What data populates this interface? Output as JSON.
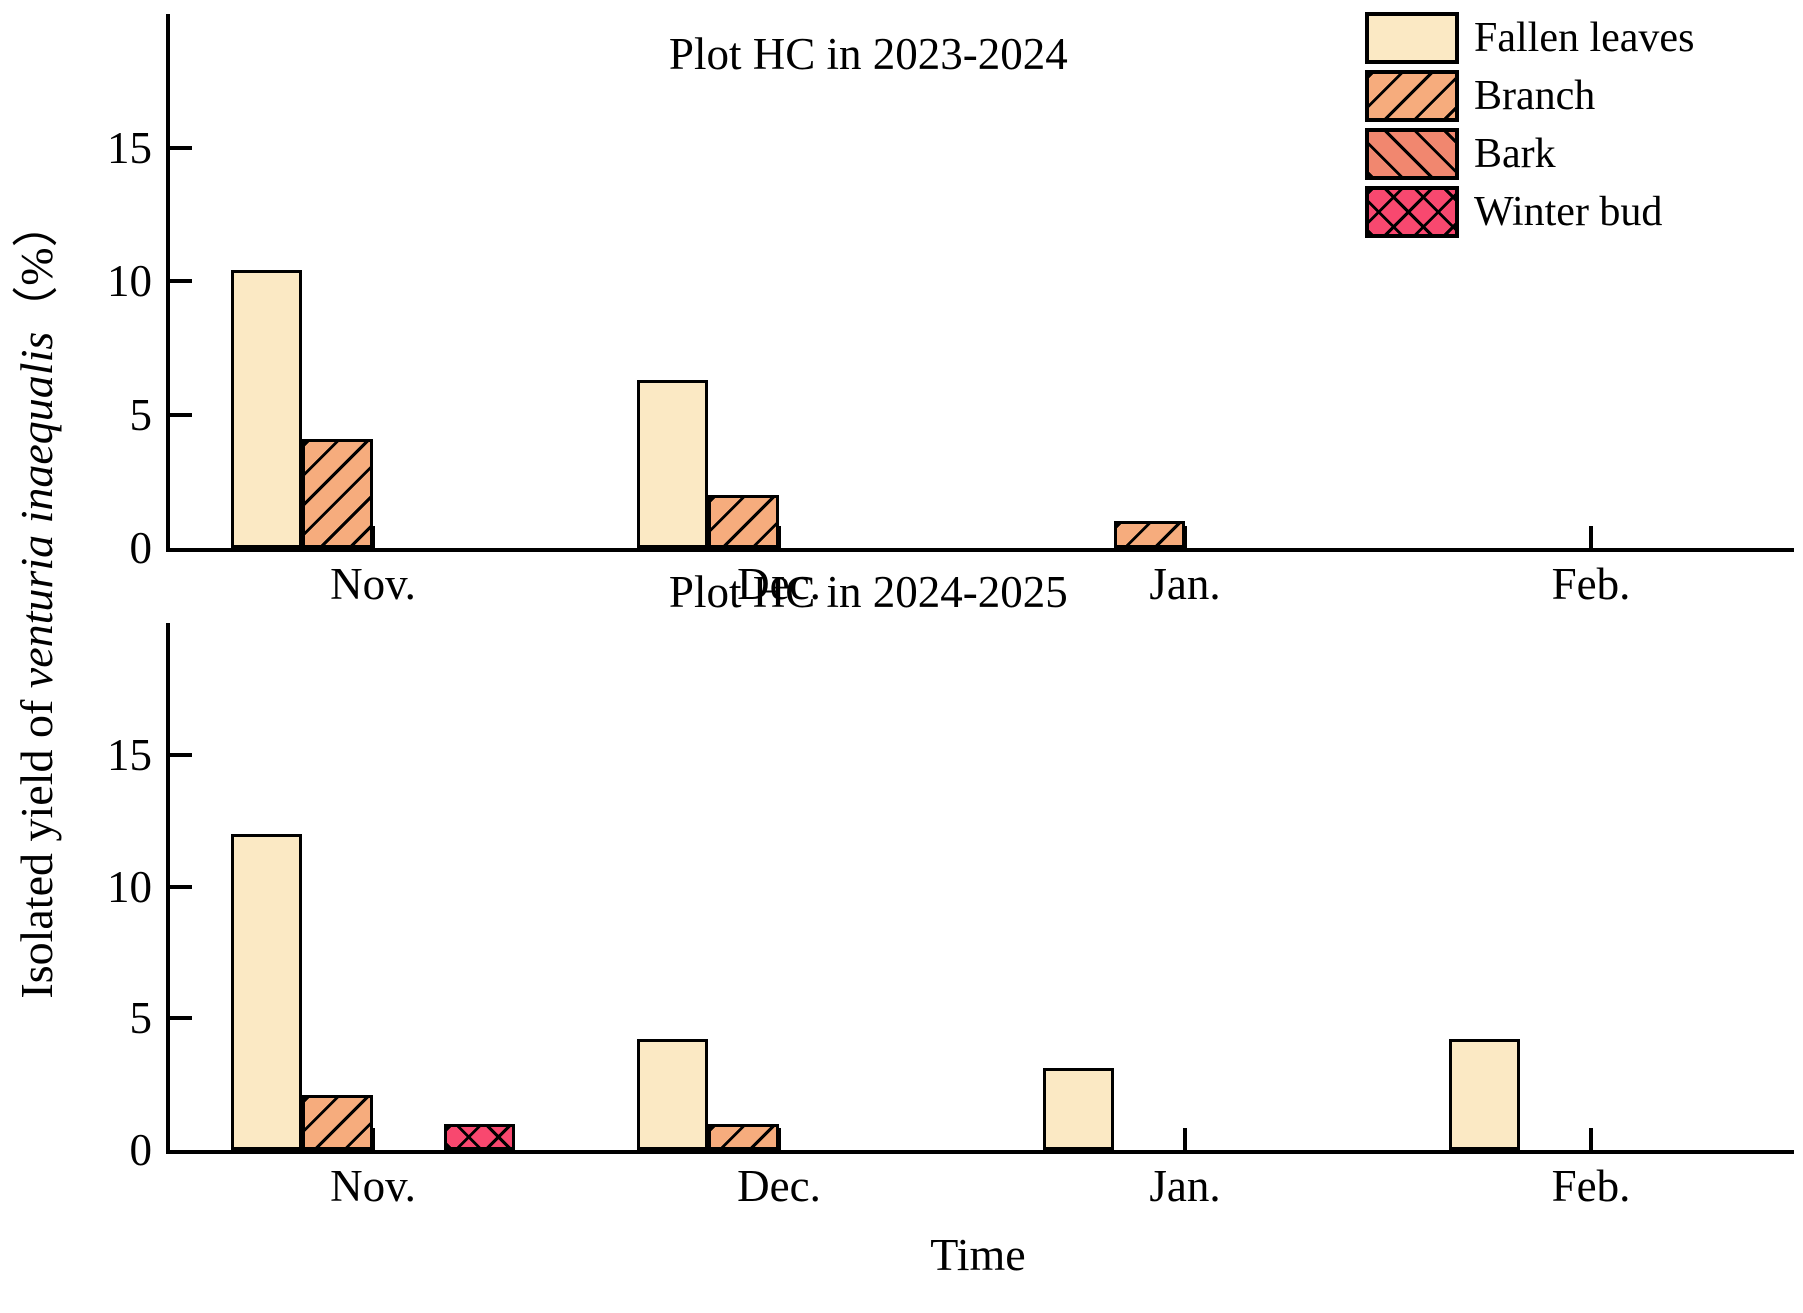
{
  "figure": {
    "y_axis_label": {
      "prefix": "Isolated yield of ",
      "italic": "venturia inaequalis",
      "suffix": "（%）"
    },
    "x_axis_label": "Time",
    "background": "#ffffff",
    "axis_color": "#000000"
  },
  "legend": {
    "position": "top-right",
    "items": [
      {
        "label": "Fallen leaves",
        "color": "#FBE9C4",
        "hatch": "none"
      },
      {
        "label": "Branch",
        "color": "#F6AC7D",
        "hatch": "forward"
      },
      {
        "label": "Bark",
        "color": "#F1876F",
        "hatch": "backward"
      },
      {
        "label": "Winter bud",
        "color": "#F8486F",
        "hatch": "cross"
      }
    ]
  },
  "chart_data": [
    {
      "type": "bar",
      "title": "Plot HC in 2023-2024",
      "categories": [
        "Nov.",
        "Dec.",
        "Jan.",
        "Feb."
      ],
      "series": [
        {
          "name": "Fallen leaves",
          "values": [
            10.4,
            6.3,
            0,
            0
          ]
        },
        {
          "name": "Branch",
          "values": [
            4.1,
            2.0,
            1.0,
            0
          ]
        },
        {
          "name": "Bark",
          "values": [
            0,
            0,
            0,
            0
          ]
        },
        {
          "name": "Winter bud",
          "values": [
            0,
            0,
            0,
            0
          ]
        }
      ],
      "ylim": [
        0,
        20
      ],
      "yticks": [
        0,
        5,
        10,
        15
      ],
      "grid": false,
      "legend_position": "top-right"
    },
    {
      "type": "bar",
      "title": "Plot HC in 2024-2025",
      "categories": [
        "Nov.",
        "Dec.",
        "Jan.",
        "Feb."
      ],
      "series": [
        {
          "name": "Fallen leaves",
          "values": [
            12.0,
            4.2,
            3.1,
            4.2
          ]
        },
        {
          "name": "Branch",
          "values": [
            2.1,
            1.0,
            0,
            0
          ]
        },
        {
          "name": "Bark",
          "values": [
            0,
            0,
            0,
            0
          ]
        },
        {
          "name": "Winter bud",
          "values": [
            1.0,
            0,
            0,
            0
          ]
        }
      ],
      "ylim": [
        0,
        20
      ],
      "yticks": [
        0,
        5,
        10,
        15
      ],
      "grid": false,
      "legend_position": "none"
    }
  ]
}
